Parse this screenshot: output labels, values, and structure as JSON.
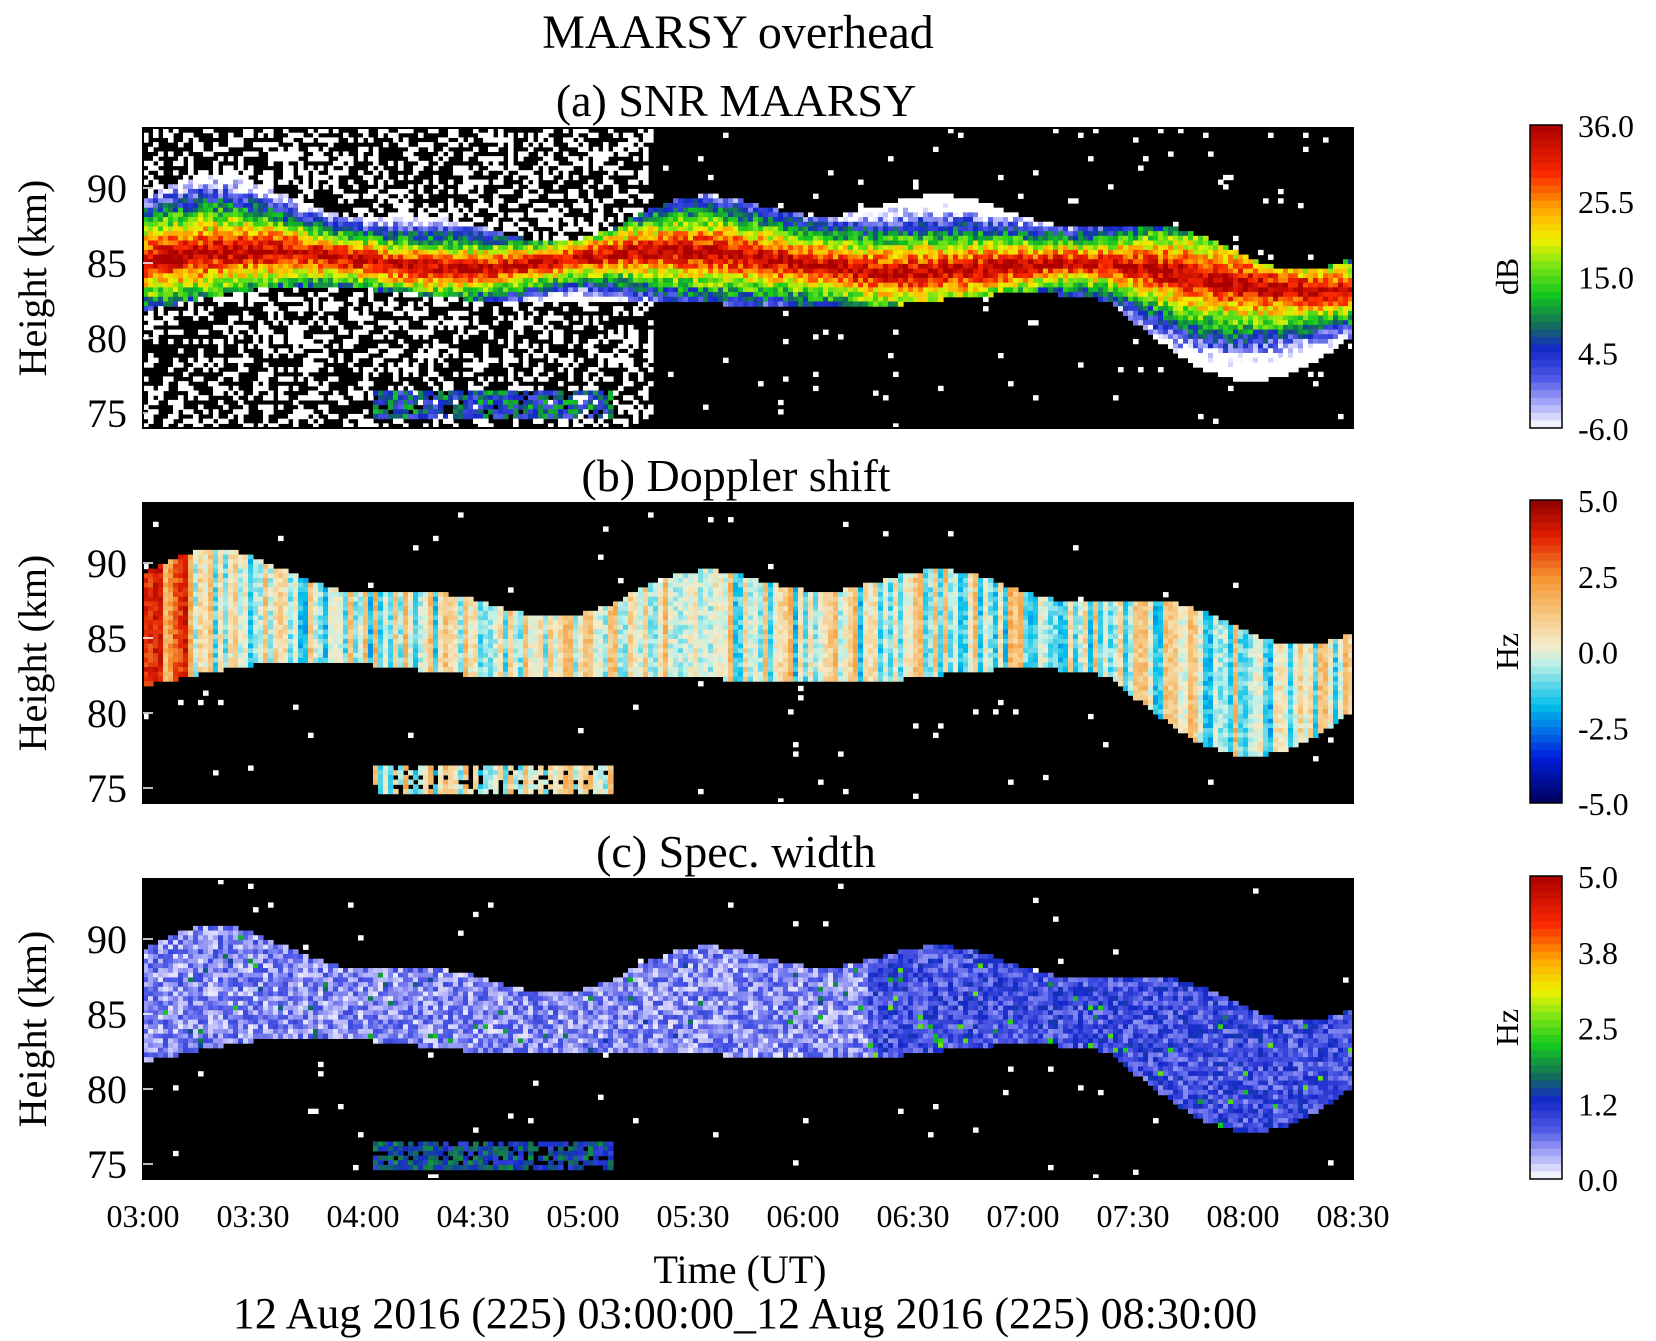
{
  "title": "MAARSY overhead",
  "footer": "12 Aug 2016 (225) 03:00:00_12 Aug 2016 (225) 08:30:00",
  "chart_data": [
    {
      "type": "heatmap",
      "title": "(a) SNR MAARSY",
      "ylabel": "Height (km)",
      "xlabel": "",
      "ylim": [
        74,
        94
      ],
      "y_ticks": [
        "75",
        "80",
        "85",
        "90"
      ],
      "x_ticks": [],
      "xlim": [
        "03:00",
        "08:30"
      ],
      "colorbar": {
        "label": "dB",
        "range": [
          -6.0,
          36.0
        ],
        "ticks": [
          "36.0",
          "25.5",
          "15.0",
          "4.5",
          "-6.0"
        ]
      },
      "colormap": "rainbow-white-low",
      "layer_center_km": [
        [
          0,
          85.5
        ],
        [
          0.25,
          85.0
        ],
        [
          0.5,
          85.3
        ],
        [
          0.75,
          84.2
        ],
        [
          1.0,
          83.5
        ]
      ]
    },
    {
      "type": "heatmap",
      "title": "(b) Doppler shift",
      "ylabel": "Height (km)",
      "xlabel": "",
      "ylim": [
        74,
        94
      ],
      "y_ticks": [
        "75",
        "80",
        "85",
        "90"
      ],
      "x_ticks": [],
      "xlim": [
        "03:00",
        "08:30"
      ],
      "colorbar": {
        "label": "Hz",
        "range": [
          -5.0,
          5.0
        ],
        "ticks": [
          "5.0",
          "2.5",
          "0.0",
          "-2.5",
          "-5.0"
        ]
      },
      "colormap": "diverging-rainbow"
    },
    {
      "type": "heatmap",
      "title": "(c) Spec. width",
      "ylabel": "Height (km)",
      "xlabel": "Time (UT)",
      "ylim": [
        74,
        94
      ],
      "y_ticks": [
        "75",
        "80",
        "85",
        "90"
      ],
      "x_ticks": [
        "03:00",
        "03:30",
        "04:00",
        "04:30",
        "05:00",
        "05:30",
        "06:00",
        "06:30",
        "07:00",
        "07:30",
        "08:00",
        "08:30"
      ],
      "xlim": [
        "03:00",
        "08:30"
      ],
      "colorbar": {
        "label": "Hz",
        "range": [
          0.0,
          5.0
        ],
        "ticks": [
          "5.0",
          "3.8",
          "2.5",
          "1.2",
          "0.0"
        ]
      },
      "colormap": "rainbow-white-low"
    }
  ],
  "colors": {
    "background": "#000000",
    "low_value": "#ffffff",
    "frame": "#000000"
  }
}
